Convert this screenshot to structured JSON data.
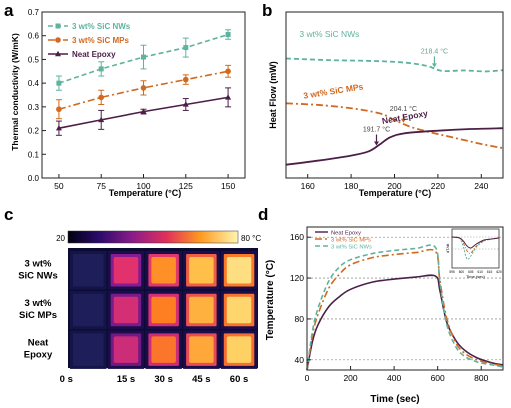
{
  "colors": {
    "nws": "#5fb39e",
    "mps": "#d2691e",
    "epoxy": "#4b1f48",
    "axis": "#222222",
    "grid": "#9a9a9a"
  },
  "chart_data": [
    {
      "panel": "a",
      "type": "line",
      "xlabel": "Temperature (°C)",
      "ylabel": "Thermal conductivity (W/mK)",
      "xlim": [
        40,
        160
      ],
      "ylim": [
        0.0,
        0.7
      ],
      "xticks": [
        "50",
        "75",
        "100",
        "125",
        "150"
      ],
      "yticks": [
        "0.0",
        "0.1",
        "0.2",
        "0.3",
        "0.4",
        "0.5",
        "0.6",
        "0.7"
      ],
      "legend": "top-left",
      "x": [
        50,
        75,
        100,
        125,
        150
      ],
      "series": [
        {
          "name": "3 wt% SiC NWs",
          "values": [
            0.4,
            0.46,
            0.51,
            0.55,
            0.605
          ],
          "err": [
            0.03,
            0.03,
            0.05,
            0.04,
            0.02
          ],
          "style": "dashed",
          "marker": "square"
        },
        {
          "name": "3 wt% SiC MPs",
          "values": [
            0.29,
            0.34,
            0.38,
            0.415,
            0.45
          ],
          "err": [
            0.04,
            0.03,
            0.03,
            0.02,
            0.025
          ],
          "style": "dashdot",
          "marker": "circle"
        },
        {
          "name": "Neat Epoxy",
          "values": [
            0.21,
            0.245,
            0.28,
            0.31,
            0.34
          ],
          "err": [
            0.03,
            0.04,
            0.01,
            0.025,
            0.04
          ],
          "style": "solid",
          "marker": "triangle"
        }
      ]
    },
    {
      "panel": "b",
      "type": "line",
      "xlabel": "Temperature (°C)",
      "ylabel": "Heat Flow (mW)",
      "xlim": [
        150,
        250
      ],
      "xticks": [
        "160",
        "180",
        "200",
        "220",
        "240"
      ],
      "yticks": [],
      "series": [
        {
          "name": "3 wt% SiC NWs",
          "label": "3 wt% SiC NWs",
          "tg": "218.4 °C",
          "style": "dashed",
          "points": [
            [
              150,
              72
            ],
            [
              170,
              71
            ],
            [
              190,
              70.5
            ],
            [
              205,
              69.5
            ],
            [
              215,
              67.5
            ],
            [
              222,
              64.5
            ],
            [
              232,
              64.8
            ],
            [
              242,
              64.2
            ],
            [
              250,
              65
            ]
          ]
        },
        {
          "name": "3 wt% SiC MPs",
          "label": "3 wt% SiC MPs",
          "tg": "204.1 °C",
          "style": "dashdot",
          "points": [
            [
              150,
              45
            ],
            [
              165,
              44
            ],
            [
              180,
              42
            ],
            [
              193,
              39
            ],
            [
              200,
              35
            ],
            [
              207,
              31
            ],
            [
              215,
              28
            ],
            [
              225,
              25
            ],
            [
              240,
              20.5
            ],
            [
              250,
              18
            ]
          ]
        },
        {
          "name": "Neat Epoxy",
          "label": "Neat Epoxy",
          "tg": "191.7 °C",
          "style": "solid",
          "points": [
            [
              150,
              8
            ],
            [
              165,
              10.5
            ],
            [
              180,
              13.5
            ],
            [
              188,
              16
            ],
            [
              193,
              20
            ],
            [
              198,
              24.5
            ],
            [
              205,
              27
            ],
            [
              220,
              28.5
            ],
            [
              235,
              29.5
            ],
            [
              250,
              30
            ]
          ]
        }
      ]
    },
    {
      "panel": "d",
      "type": "line",
      "xlabel": "Time (sec)",
      "ylabel": "Temperature (°C)",
      "xlim": [
        0,
        900
      ],
      "ylim": [
        30,
        170
      ],
      "xticks": [
        "0",
        "200",
        "400",
        "600",
        "800"
      ],
      "yticks": [
        "40",
        "80",
        "120",
        "160"
      ],
      "ref_lines": [
        40,
        80,
        120,
        160
      ],
      "legend": "top-left",
      "series": [
        {
          "name": "Neat Epoxy",
          "style": "solid",
          "points": [
            [
              0,
              30
            ],
            [
              25,
              58
            ],
            [
              50,
              74
            ],
            [
              100,
              92
            ],
            [
              150,
              102
            ],
            [
              200,
              109
            ],
            [
              300,
              116
            ],
            [
              400,
              119
            ],
            [
              500,
              121
            ],
            [
              590,
              122
            ],
            [
              610,
              108
            ],
            [
              640,
              78
            ],
            [
              680,
              60
            ],
            [
              720,
              50
            ],
            [
              780,
              42
            ],
            [
              850,
              37
            ],
            [
              900,
              35
            ]
          ]
        },
        {
          "name": "3 wt% SiC MPs",
          "style": "dashdot",
          "points": [
            [
              0,
              30
            ],
            [
              25,
              64
            ],
            [
              50,
              84
            ],
            [
              100,
              110
            ],
            [
              150,
              124
            ],
            [
              200,
              133
            ],
            [
              300,
              140
            ],
            [
              400,
              143
            ],
            [
              500,
              145
            ],
            [
              590,
              146
            ],
            [
              610,
              118
            ],
            [
              640,
              82
            ],
            [
              680,
              58
            ],
            [
              720,
              47
            ],
            [
              780,
              40
            ],
            [
              850,
              36
            ],
            [
              900,
              34
            ]
          ]
        },
        {
          "name": "3 wt% SiC NWs",
          "style": "dashed",
          "points": [
            [
              0,
              30
            ],
            [
              25,
              68
            ],
            [
              50,
              90
            ],
            [
              100,
              117
            ],
            [
              150,
              131
            ],
            [
              200,
              138
            ],
            [
              300,
              144
            ],
            [
              400,
              147
            ],
            [
              500,
              149
            ],
            [
              590,
              150
            ],
            [
              610,
              116
            ],
            [
              640,
              76
            ],
            [
              680,
              54
            ],
            [
              720,
              44
            ],
            [
              780,
              38
            ],
            [
              850,
              35
            ],
            [
              900,
              33
            ]
          ]
        }
      ],
      "inset": {
        "ylabel": "dT/dt",
        "xlabel": "Time (sec)",
        "xticks": [
          "595",
          "600",
          "605",
          "610",
          "615",
          "620"
        ],
        "xlim": [
          595,
          620
        ]
      }
    }
  ],
  "panel_c": {
    "colorbar_min": "20",
    "colorbar_max": "80 °C",
    "rows": [
      "3 wt%\nSiC NWs",
      "3 wt%\nSiC MPs",
      "Neat\nEpoxy"
    ],
    "columns": [
      "0 s",
      "15 s",
      "30 s",
      "45 s",
      "60 s"
    ],
    "fill": [
      [
        0.05,
        0.55,
        0.78,
        0.88,
        0.95
      ],
      [
        0.05,
        0.52,
        0.74,
        0.85,
        0.93
      ],
      [
        0.05,
        0.5,
        0.72,
        0.83,
        0.92
      ]
    ]
  },
  "panel_labels": [
    "a",
    "b",
    "c",
    "d"
  ]
}
